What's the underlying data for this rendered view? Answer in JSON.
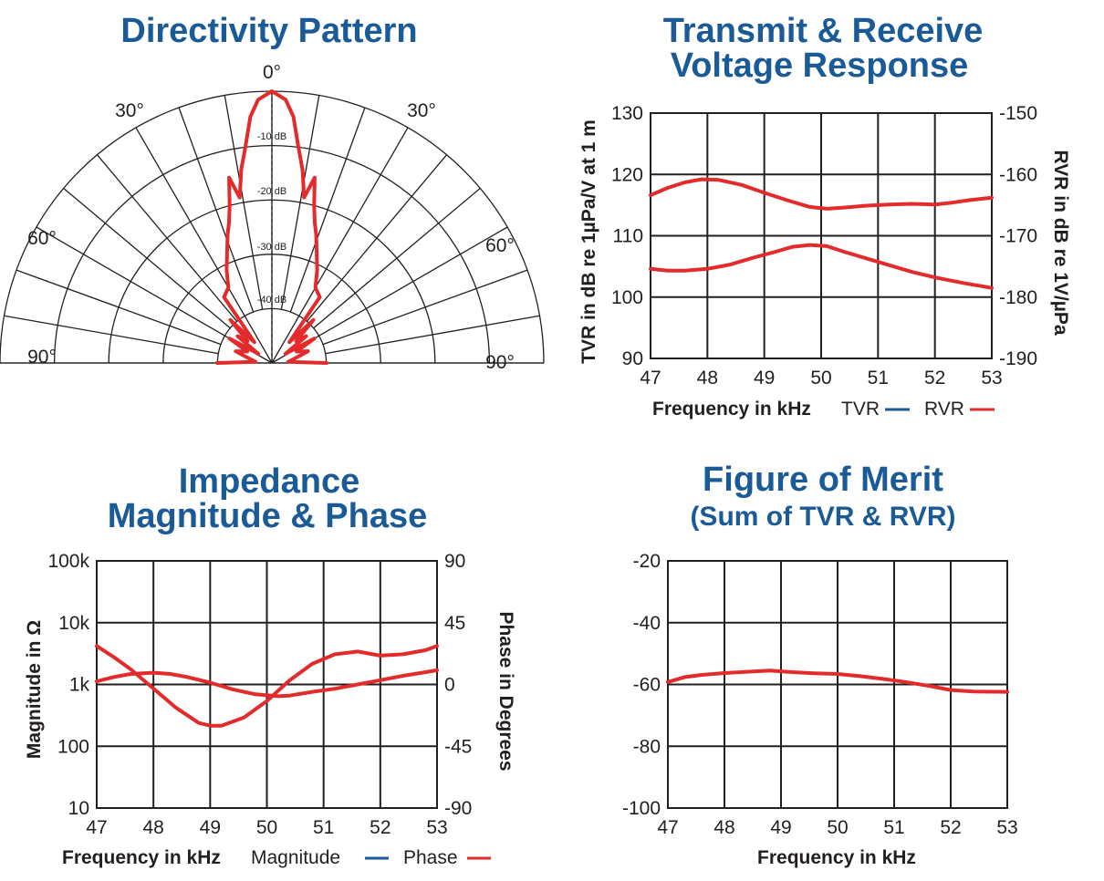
{
  "chart_data": [
    {
      "id": "directivity",
      "type": "polar",
      "title": "Directivity Pattern",
      "angle_labels": {
        "top": "0°",
        "upper_left": "30°",
        "upper_right": "30°",
        "mid_left": "60°",
        "mid_right": "60°",
        "bottom_left": "90°",
        "bottom_right": "90°"
      },
      "ring_labels": [
        "-10 dB",
        "-20 dB",
        "-30 dB",
        "-40 dB"
      ],
      "rlim": [
        -50,
        0
      ],
      "series": [
        {
          "name": "Pattern",
          "color": "#e32b2b",
          "angles": [
            -86,
            -80,
            -72,
            -65,
            -60,
            -56,
            -52,
            -48,
            -44,
            -40,
            -36,
            -30,
            -26,
            -22,
            -19,
            -17,
            -15,
            -13,
            -11,
            -9,
            -7,
            -5,
            -3,
            0,
            3,
            5,
            7,
            9,
            11,
            13,
            15,
            17,
            19,
            22,
            26,
            30,
            36,
            40,
            44,
            48,
            52,
            56,
            60,
            65,
            72,
            80,
            86
          ],
          "db": [
            -47,
            -46,
            -43,
            -45,
            -41,
            -47,
            -42,
            -44,
            -39,
            -45,
            -35,
            -34,
            -31,
            -28,
            -25,
            -23,
            -20,
            -15,
            -19,
            -14,
            -10,
            -4.5,
            -1.5,
            0,
            -1.5,
            -4.5,
            -10,
            -14,
            -19,
            -15,
            -20,
            -23,
            -25,
            -28,
            -31,
            -34,
            -35,
            -45,
            -39,
            -44,
            -42,
            -47,
            -41,
            -45,
            -43,
            -46,
            -47
          ]
        }
      ]
    },
    {
      "id": "tvr_rvr",
      "type": "line",
      "title_lines": [
        "Transmit & Receive",
        "Voltage Response"
      ],
      "xlabel": "Frequency in kHz",
      "ylabel": "TVR in dB re 1µPa/V at 1 m",
      "ylabel_right": "RVR in dB re 1V/µPa",
      "xlim": [
        47,
        53
      ],
      "ylim": [
        90,
        130
      ],
      "ylim_right": [
        -190,
        -150
      ],
      "x_ticks": [
        "47",
        "48",
        "49",
        "50",
        "51",
        "52",
        "53"
      ],
      "y_ticks": [
        "90",
        "100",
        "110",
        "120",
        "130"
      ],
      "y_ticks_right": [
        "-190",
        "-180",
        "-170",
        "-160",
        "-150"
      ],
      "legend": [
        {
          "label": "TVR",
          "color": "#1a5a96"
        },
        {
          "label": "RVR",
          "color": "#e32b2b"
        }
      ],
      "series": [
        {
          "name": "TVR",
          "color": "#1a5a96",
          "axis": "left",
          "x": [
            47,
            47.3,
            47.6,
            48,
            48.4,
            48.8,
            49.2,
            49.5,
            49.8,
            50.1,
            50.4,
            50.8,
            51.2,
            51.6,
            52,
            52.5,
            53
          ],
          "y": [
            104.6,
            104.3,
            104.3,
            104.6,
            105.3,
            106.4,
            107.4,
            108.2,
            108.5,
            108.3,
            107.4,
            106.3,
            105.2,
            104.1,
            103.2,
            102.3,
            101.5
          ]
        },
        {
          "name": "RVR",
          "color": "#e32b2b",
          "axis": "right",
          "x": [
            47,
            47.3,
            47.6,
            47.9,
            48.2,
            48.6,
            49,
            49.4,
            49.8,
            50.1,
            50.4,
            50.8,
            51.2,
            51.6,
            52,
            52.3,
            52.6,
            53
          ],
          "y": [
            -163.4,
            -162.2,
            -161.3,
            -160.8,
            -160.9,
            -161.7,
            -163.0,
            -164.2,
            -165.3,
            -165.6,
            -165.4,
            -165.1,
            -164.9,
            -164.8,
            -164.9,
            -164.6,
            -164.2,
            -163.8
          ]
        }
      ]
    },
    {
      "id": "impedance",
      "type": "line",
      "title_lines": [
        "Impedance",
        "Magnitude & Phase"
      ],
      "xlabel": "Frequency in kHz",
      "ylabel": "Magnitude in Ω",
      "ylabel_right": "Phase in Degrees",
      "xlim": [
        47,
        53
      ],
      "ylim": [
        1,
        5
      ],
      "yscale": "log",
      "ylim_right": [
        -90,
        90
      ],
      "x_ticks": [
        "47",
        "48",
        "49",
        "50",
        "51",
        "52",
        "53"
      ],
      "y_ticks": [
        "10",
        "100",
        "1k",
        "10k",
        "100k"
      ],
      "y_ticks_right": [
        "-90",
        "-45",
        "0",
        "45",
        "90"
      ],
      "legend": [
        {
          "label": "Magnitude",
          "color": "#1a5a96"
        },
        {
          "label": "Phase",
          "color": "#e32b2b"
        }
      ],
      "series": [
        {
          "name": "Magnitude",
          "color": "#1a5a96",
          "axis": "left",
          "unit": "log10 ohms",
          "x": [
            47,
            47.3,
            47.6,
            48,
            48.3,
            48.6,
            49,
            49.4,
            49.8,
            50.2,
            50.4,
            50.8,
            51.2,
            51.6,
            52,
            52.4,
            52.8,
            53
          ],
          "y": [
            3.05,
            3.12,
            3.17,
            3.19,
            3.17,
            3.12,
            3.03,
            2.92,
            2.84,
            2.81,
            2.82,
            2.88,
            2.93,
            3.0,
            3.07,
            3.14,
            3.2,
            3.23
          ]
        },
        {
          "name": "Phase",
          "color": "#e32b2b",
          "axis": "right",
          "unit": "degrees",
          "x": [
            47,
            47.3,
            47.6,
            48,
            48.4,
            48.8,
            49,
            49.2,
            49.6,
            50,
            50.4,
            50.8,
            51.2,
            51.6,
            52,
            52.4,
            52.8,
            53
          ],
          "y": [
            28,
            20,
            11,
            -3,
            -17,
            -28,
            -30,
            -30,
            -24,
            -12,
            3,
            15,
            22,
            24,
            21,
            22,
            25,
            28
          ]
        }
      ]
    },
    {
      "id": "fom",
      "type": "line",
      "title_lines": [
        "Figure of Merit",
        "(Sum of TVR & RVR)"
      ],
      "xlabel": "Frequency in kHz",
      "ylabel": "",
      "xlim": [
        47,
        53
      ],
      "ylim": [
        -100,
        -20
      ],
      "x_ticks": [
        "47",
        "48",
        "49",
        "50",
        "51",
        "52",
        "53"
      ],
      "y_ticks": [
        "-100",
        "-80",
        "-60",
        "-40",
        "-20"
      ],
      "series": [
        {
          "name": "FOM",
          "color": "#e32b2b",
          "x": [
            47,
            47.3,
            47.6,
            48,
            48.4,
            48.8,
            49.2,
            49.6,
            50,
            50.4,
            50.8,
            51.2,
            51.6,
            52,
            52.4,
            53
          ],
          "y": [
            -59.2,
            -57.6,
            -56.9,
            -56.3,
            -55.9,
            -55.5,
            -56.0,
            -56.4,
            -56.6,
            -57.3,
            -58.2,
            -59.2,
            -60.4,
            -61.8,
            -62.3,
            -62.4
          ]
        }
      ]
    }
  ]
}
